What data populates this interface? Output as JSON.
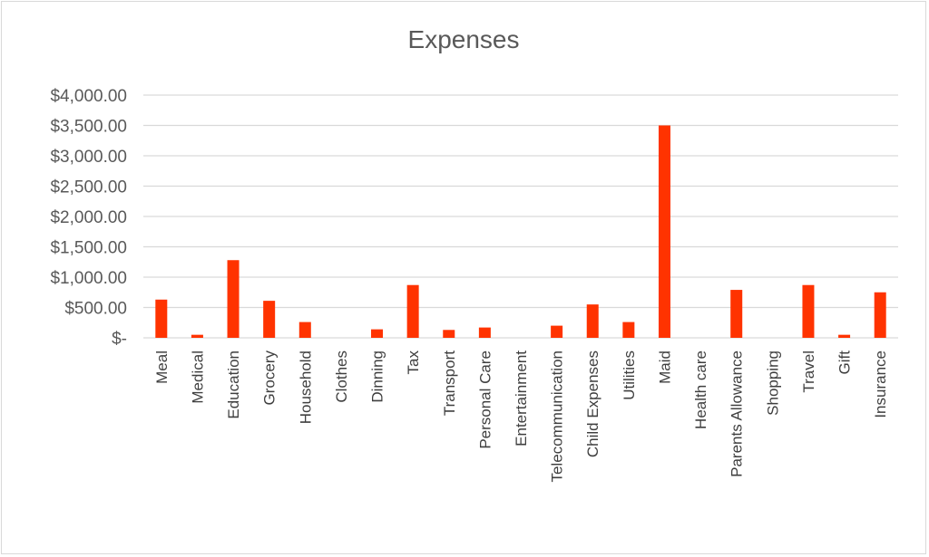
{
  "chart_data": {
    "type": "bar",
    "title": "Expenses",
    "xlabel": "",
    "ylabel": "",
    "ylim": [
      0,
      4000
    ],
    "yticks": [
      0,
      500,
      1000,
      1500,
      2000,
      2500,
      3000,
      3500,
      4000
    ],
    "ytick_labels": [
      "$-",
      "$500.00",
      "$1,000.00",
      "$1,500.00",
      "$2,000.00",
      "$2,500.00",
      "$3,000.00",
      "$3,500.00",
      "$4,000.00"
    ],
    "grid": true,
    "legend": "none",
    "categories": [
      "Meal",
      "Medical",
      "Education",
      "Grocery",
      "Household",
      "Clothes",
      "Dinning",
      "Tax",
      "Transport",
      "Personal Care",
      "Entertainment",
      "Telecommunication",
      "Child Expenses",
      "Utilities",
      "Maid",
      "Health care",
      "Parents Allowance",
      "Shopping",
      "Travel",
      "Gift",
      "Insurance"
    ],
    "series": [
      {
        "values": [
          630,
          50,
          1280,
          610,
          260,
          0,
          140,
          870,
          130,
          170,
          0,
          200,
          550,
          260,
          3500,
          0,
          790,
          0,
          870,
          50,
          750
        ],
        "color": "#ff3300"
      }
    ]
  }
}
